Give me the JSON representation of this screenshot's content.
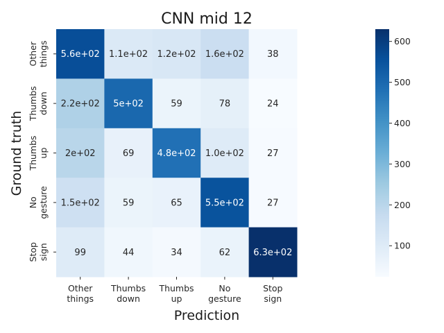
{
  "chart_data": {
    "type": "heatmap",
    "title": "CNN mid 12",
    "xlabel": "Prediction",
    "ylabel": "Ground truth",
    "x_categories": [
      [
        "Other",
        "things"
      ],
      [
        "Thumbs",
        "down"
      ],
      [
        "Thumbs",
        "up"
      ],
      [
        "No",
        "gesture"
      ],
      [
        "Stop",
        "sign"
      ]
    ],
    "y_categories": [
      [
        "Other",
        "things"
      ],
      [
        "Thumbs",
        "down"
      ],
      [
        "Thumbs",
        "up"
      ],
      [
        "No",
        "gesture"
      ],
      [
        "Stop",
        "sign"
      ]
    ],
    "values": [
      [
        560,
        110,
        120,
        160,
        38
      ],
      [
        220,
        500,
        59,
        78,
        24
      ],
      [
        200,
        69,
        480,
        100,
        27
      ],
      [
        150,
        59,
        65,
        550,
        27
      ],
      [
        99,
        44,
        34,
        62,
        630
      ]
    ],
    "cell_labels": [
      [
        "5.6e+02",
        "1.1e+02",
        "1.2e+02",
        "1.6e+02",
        "38"
      ],
      [
        "2.2e+02",
        "5e+02",
        "59",
        "78",
        "24"
      ],
      [
        "2e+02",
        "69",
        "4.8e+02",
        "1.0e+02",
        "27"
      ],
      [
        "1.5e+02",
        "59",
        "65",
        "5.5e+02",
        "27"
      ],
      [
        "99",
        "44",
        "34",
        "62",
        "6.3e+02"
      ]
    ],
    "colormap": "Blues",
    "colorbar": {
      "range": [
        24,
        630
      ],
      "ticks": [
        100,
        200,
        300,
        400,
        500,
        600
      ],
      "tick_labels": [
        "100",
        "200",
        "300",
        "400",
        "500",
        "600"
      ]
    }
  }
}
